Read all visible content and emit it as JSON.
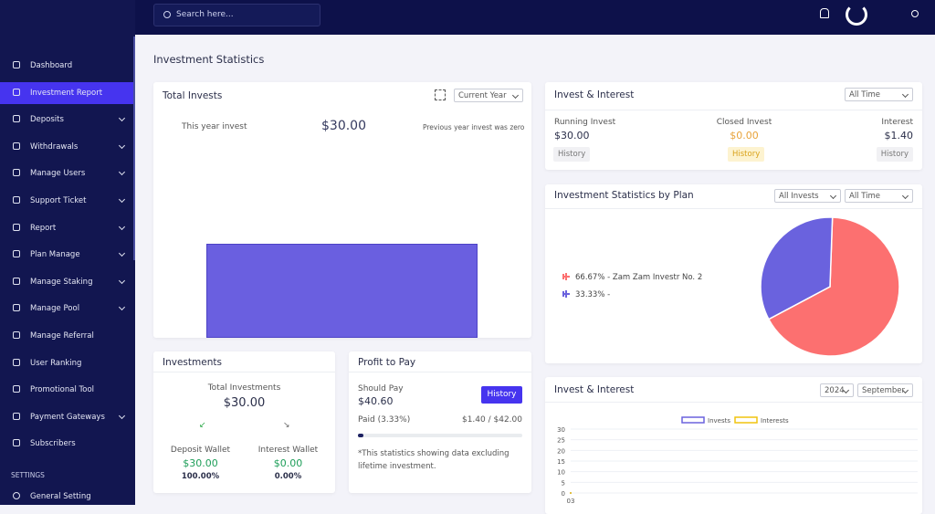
{
  "header": {
    "search_placeholder": "Search here..."
  },
  "sidebar": {
    "items": [
      "Dashboard",
      "Investment Report",
      "Deposits",
      "Withdrawals",
      "Manage Users",
      "Support Ticket",
      "Report",
      "Plan Manage",
      "Manage Staking",
      "Manage Pool",
      "Manage Referral",
      "User Ranking",
      "Promotional Tool",
      "Payment Gateways",
      "Subscribers"
    ],
    "dropdown": [
      false,
      false,
      true,
      true,
      true,
      true,
      true,
      true,
      true,
      true,
      false,
      false,
      false,
      true,
      false
    ],
    "active": 1,
    "settings_label": "SETTINGS",
    "settings_items": [
      "General Setting"
    ]
  },
  "page_title": "Investment Statistics",
  "total_invests": {
    "title": "Total Invests",
    "select": "Current Year",
    "this_year_label": "This year invest",
    "amount": "$30.00",
    "previous_note": "Previous year invest was zero"
  },
  "invest_interest": {
    "title": "Invest & Interest",
    "select": "All Time",
    "columns": [
      {
        "label": "Running Invest",
        "value": "$30.00",
        "button": "History"
      },
      {
        "label": "Closed Invest",
        "value": "$0.00",
        "button": "History"
      },
      {
        "label": "Interest",
        "value": "$1.40",
        "button": "History"
      }
    ]
  },
  "by_plan": {
    "title": "Investment Statistics by Plan",
    "selects": [
      "All Invests",
      "All Time"
    ],
    "legend": [
      "66.67% - Zam Zam Investr No. 2",
      "33.33% -"
    ],
    "pie": {
      "type": "pie",
      "values": [
        66.67,
        33.33
      ],
      "colors": [
        "#fc7070",
        "#6a62de"
      ]
    }
  },
  "investments": {
    "title": "Investments",
    "total_label": "Total Investments",
    "total": "$30.00",
    "wallets": [
      {
        "label": "Deposit Wallet",
        "value": "$30.00",
        "percent": "100.00%"
      },
      {
        "label": "Interest Wallet",
        "value": "$0.00",
        "percent": "0.00%"
      }
    ]
  },
  "profit": {
    "title": "Profit to Pay",
    "should_pay_label": "Should Pay",
    "should_pay": "$40.60",
    "button": "History",
    "paid_label": "Paid (3.33%)",
    "paid_amount": "$1.40 / $42.00",
    "progress": 3.33,
    "note": "*This statistics showing data excluding lifetime investment."
  },
  "interest_chart": {
    "title": "Invest & Interest",
    "selects": [
      "2024",
      "September"
    ],
    "chart_data": {
      "type": "line",
      "categories": [
        "03"
      ],
      "series": [
        {
          "name": "Invests",
          "color": "#6a62de",
          "values": [
            0
          ]
        },
        {
          "name": "Interests",
          "color": "#f1c40f",
          "values": [
            0
          ]
        }
      ],
      "ylim": [
        0,
        30
      ],
      "yticks": [
        0,
        5,
        10,
        15,
        20,
        25,
        30
      ],
      "grid": true
    }
  }
}
